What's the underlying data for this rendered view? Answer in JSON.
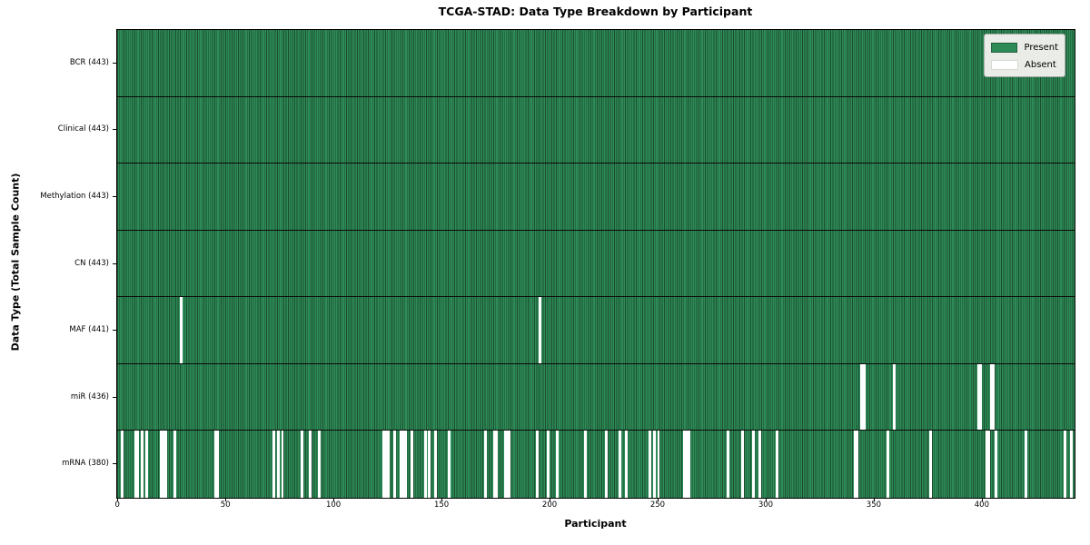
{
  "title": "TCGA-STAD: Data Type Breakdown by Participant",
  "axes": {
    "xlabel": "Participant",
    "ylabel": "Data Type (Total Sample Count)"
  },
  "legend": {
    "present_label": "Present",
    "absent_label": "Absent"
  },
  "colors": {
    "present": "#2e8b57",
    "present_edge": "#1b4d2f",
    "absent": "#ffffff",
    "legend_background": "#e9ece7",
    "axis": "#000000"
  },
  "chart_data": {
    "type": "heatmap",
    "title": "TCGA-STAD: Data Type Breakdown by Participant",
    "xlabel": "Participant",
    "ylabel": "Data Type (Total Sample Count)",
    "legend": [
      "Present",
      "Absent"
    ],
    "legend_position": "upper right",
    "grid": false,
    "total_participants": 443,
    "xlim": [
      -0.5,
      442.5
    ],
    "x_ticks": [
      0,
      50,
      100,
      150,
      200,
      250,
      300,
      350,
      400
    ],
    "rows": [
      {
        "data_type": "BCR",
        "label": "BCR (443)",
        "present_count": 443,
        "absent_count": 0,
        "absent_participants": []
      },
      {
        "data_type": "Clinical",
        "label": "Clinical (443)",
        "present_count": 443,
        "absent_count": 0,
        "absent_participants": []
      },
      {
        "data_type": "Methylation",
        "label": "Methylation (443)",
        "present_count": 443,
        "absent_count": 0,
        "absent_participants": []
      },
      {
        "data_type": "CN",
        "label": "CN (443)",
        "present_count": 443,
        "absent_count": 0,
        "absent_participants": []
      },
      {
        "data_type": "MAF",
        "label": "MAF (441)",
        "present_count": 441,
        "absent_count": 2,
        "absent_participants": [
          29,
          195
        ]
      },
      {
        "data_type": "miR",
        "label": "miR (436)",
        "present_count": 436,
        "absent_count": 7,
        "absent_participants": [
          344,
          345,
          359,
          398,
          399,
          404,
          405
        ]
      },
      {
        "data_type": "mRNA",
        "label": "mRNA (380)",
        "present_count": 380,
        "absent_count": 63,
        "absent_participants": [
          2,
          8,
          9,
          11,
          13,
          20,
          21,
          22,
          26,
          45,
          46,
          72,
          74,
          76,
          85,
          89,
          93,
          123,
          124,
          125,
          128,
          131,
          132,
          133,
          136,
          142,
          144,
          147,
          153,
          170,
          174,
          175,
          179,
          180,
          181,
          194,
          199,
          203,
          216,
          226,
          232,
          235,
          246,
          248,
          250,
          262,
          263,
          264,
          282,
          289,
          294,
          297,
          305,
          341,
          342,
          356,
          376,
          402,
          403,
          406,
          420,
          438,
          441
        ]
      }
    ]
  }
}
